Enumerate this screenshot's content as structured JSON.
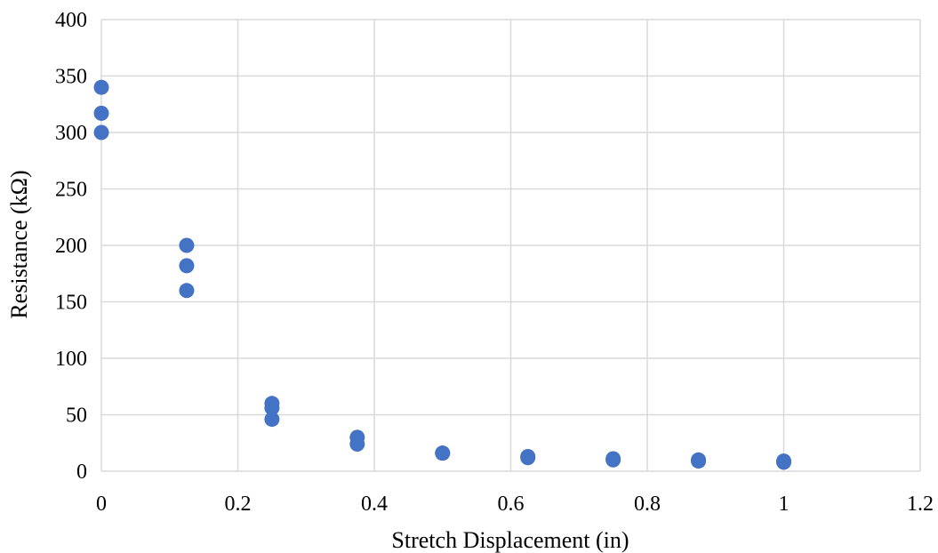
{
  "chart_data": {
    "type": "scatter",
    "title": "",
    "xlabel": "Stretch Displacement (in)",
    "ylabel": "Resistance (kΩ)",
    "xlim": [
      0,
      1.2
    ],
    "ylim": [
      0,
      400
    ],
    "xticks": [
      0,
      0.2,
      0.4,
      0.6,
      0.8,
      1,
      1.2
    ],
    "xtick_labels": [
      "0",
      "0.2",
      "0.4",
      "0.6",
      "0.8",
      "1",
      "1.2"
    ],
    "yticks": [
      0,
      50,
      100,
      150,
      200,
      250,
      300,
      350,
      400
    ],
    "ytick_labels": [
      "0",
      "50",
      "100",
      "150",
      "200",
      "250",
      "300",
      "350",
      "400"
    ],
    "grid": true,
    "legend": "none",
    "series": [
      {
        "color": "#4472c4",
        "points": [
          {
            "x": 0,
            "y": 340
          },
          {
            "x": 0,
            "y": 317
          },
          {
            "x": 0,
            "y": 300
          },
          {
            "x": 0.125,
            "y": 200
          },
          {
            "x": 0.125,
            "y": 182
          },
          {
            "x": 0.125,
            "y": 160
          },
          {
            "x": 0.25,
            "y": 60
          },
          {
            "x": 0.25,
            "y": 56
          },
          {
            "x": 0.25,
            "y": 46
          },
          {
            "x": 0.375,
            "y": 30
          },
          {
            "x": 0.375,
            "y": 24
          },
          {
            "x": 0.5,
            "y": 16
          },
          {
            "x": 0.5,
            "y": 16
          },
          {
            "x": 0.625,
            "y": 13
          },
          {
            "x": 0.625,
            "y": 12
          },
          {
            "x": 0.75,
            "y": 11
          },
          {
            "x": 0.75,
            "y": 10
          },
          {
            "x": 0.875,
            "y": 10
          },
          {
            "x": 0.875,
            "y": 9
          },
          {
            "x": 1,
            "y": 9
          },
          {
            "x": 1,
            "y": 8
          }
        ]
      }
    ]
  }
}
